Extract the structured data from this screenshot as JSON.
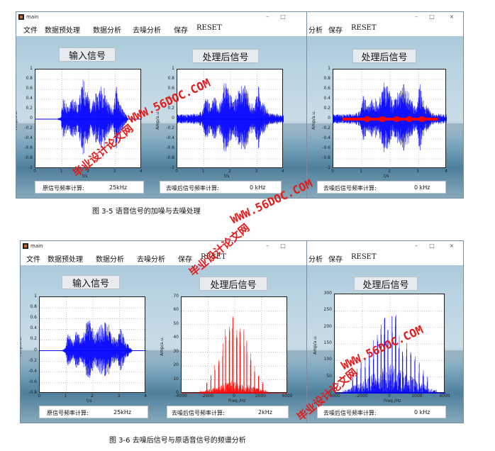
{
  "windows": {
    "title": "main",
    "menu": [
      "文件",
      "数据预处理",
      "数据分析",
      "去噪分析",
      "保存",
      "RESET"
    ],
    "menu_cut": [
      "分析",
      "保存",
      "RESET"
    ],
    "panel_input": "输入信号",
    "panel_processed": "处理后信号",
    "status_orig_label": "原信号频率计算:",
    "status_orig_value": "25kHz",
    "status_denoise_label": "去噪后信号频率计算:"
  },
  "top": {
    "denoise_value_mid": "0 kHz",
    "denoise_value_right": "0 kHz",
    "caption": "图 3-5   语音信号的加噪与去噪处理"
  },
  "bottom": {
    "denoise_value_mid": "2kHz",
    "denoise_value_right": "0 kHz",
    "caption": "图 3-6  去噪后信号与原语音信号的频谱分析"
  },
  "axes_text": {
    "time_xlabel": "t/s",
    "amp_ylabel": "Amp/a.u.",
    "freq_xlabel": "Freq./Hz",
    "amp_ylabel_freq": "Amp/a.u."
  },
  "watermarks": {
    "site_cn": "毕业设计论文网",
    "site_url": "WWW.56DOC.COM"
  },
  "colors": {
    "signal": "#0000ff",
    "spectrum_red": "#ff0000",
    "denoised_red": "#ff0000"
  },
  "chart_data": [
    {
      "type": "line",
      "name_hint": "top-input",
      "x_ticks": [
        "0",
        "1",
        "2",
        "3",
        "4"
      ],
      "y_ticks": [
        "1",
        "0.8",
        "0.6",
        "0.4",
        "0.2",
        "0",
        "-0.2",
        "-0.4",
        "-0.6",
        "-0.8",
        "-1"
      ],
      "xlim": [
        0,
        4
      ],
      "ylim": [
        -1,
        1
      ],
      "envelope_x": [
        0,
        0.4,
        0.8,
        0.95,
        1.05,
        1.25,
        1.4,
        1.6,
        1.8,
        1.95,
        2.1,
        2.3,
        2.55,
        2.7,
        2.9,
        3.05,
        3.2,
        3.5,
        4
      ],
      "envelope_y": [
        0,
        0,
        0,
        0.05,
        0.45,
        0.25,
        0.5,
        0.3,
        0.85,
        0.6,
        0.3,
        0.55,
        0.75,
        0.4,
        0.2,
        0.7,
        0.3,
        0,
        0
      ]
    },
    {
      "type": "line",
      "name_hint": "top-processed",
      "x_ticks": [
        "0",
        "1",
        "2",
        "3",
        "4"
      ],
      "y_ticks": [
        "1",
        "0.8",
        "0.6",
        "0.4",
        "0.2",
        "0",
        "-0.2",
        "-0.4",
        "-0.6",
        "-0.8",
        "-1"
      ],
      "xlim": [
        0,
        4
      ],
      "ylim": [
        -1,
        1
      ],
      "envelope_x": [
        0,
        0.4,
        0.8,
        0.95,
        1.05,
        1.25,
        1.4,
        1.6,
        1.8,
        1.95,
        2.1,
        2.3,
        2.55,
        2.7,
        2.9,
        3.05,
        3.2,
        3.5,
        4
      ],
      "envelope_y": [
        0.1,
        0.1,
        0.12,
        0.18,
        0.5,
        0.3,
        0.55,
        0.35,
        0.85,
        0.65,
        0.35,
        0.6,
        0.78,
        0.45,
        0.25,
        0.72,
        0.35,
        0.12,
        0.1
      ]
    },
    {
      "type": "line",
      "name_hint": "top-denoised",
      "x_ticks": [
        "0",
        "1",
        "2",
        "3",
        "4"
      ],
      "y_ticks": [
        "1",
        "0.8",
        "0.6",
        "0.4",
        "0.2",
        "0",
        "-0.2",
        "-0.4",
        "-0.6",
        "-0.8",
        "-1"
      ],
      "xlim": [
        0,
        4
      ],
      "ylim": [
        -1,
        1
      ],
      "envelope_x": [
        0,
        0.4,
        0.8,
        0.95,
        1.05,
        1.25,
        1.4,
        1.6,
        1.8,
        1.95,
        2.1,
        2.3,
        2.55,
        2.7,
        2.9,
        3.05,
        3.2,
        3.5,
        4
      ],
      "envelope_y": [
        0.1,
        0.1,
        0.12,
        0.18,
        0.5,
        0.3,
        0.55,
        0.35,
        0.85,
        0.65,
        0.35,
        0.6,
        0.78,
        0.45,
        0.25,
        0.72,
        0.35,
        0.12,
        0.1
      ]
    },
    {
      "type": "line",
      "name_hint": "bottom-input",
      "x_ticks": [
        "0",
        "1",
        "2",
        "3",
        "4"
      ],
      "y_ticks": [
        "1",
        "0.8",
        "0.6",
        "0.4",
        "0.2",
        "0",
        "-0.2",
        "-0.4",
        "-0.6",
        "-0.8"
      ],
      "xlim": [
        0,
        4
      ],
      "ylim": [
        -0.8,
        1
      ],
      "envelope_x": [
        0,
        0.4,
        0.8,
        0.95,
        1.05,
        1.25,
        1.4,
        1.6,
        1.8,
        1.95,
        2.1,
        2.3,
        2.55,
        2.7,
        2.9,
        3.05,
        3.2,
        3.5,
        4
      ],
      "envelope_y": [
        0,
        0,
        0,
        0.05,
        0.35,
        0.2,
        0.4,
        0.25,
        0.7,
        0.5,
        0.3,
        0.5,
        0.6,
        0.35,
        0.2,
        0.45,
        0.2,
        0,
        0
      ]
    },
    {
      "type": "bar",
      "name_hint": "bottom-processed-spectrum",
      "x_ticks": [
        "-4000",
        "-2000",
        "0",
        "2000",
        "4000"
      ],
      "y_ticks": [
        "70",
        "60",
        "50",
        "40",
        "30",
        "20",
        "10",
        "0"
      ],
      "xlim": [
        -4000,
        4000
      ],
      "ylim": [
        0,
        70
      ]
    },
    {
      "type": "bar",
      "name_hint": "bottom-denoised-spectrum",
      "x_ticks": [
        "-4000",
        "-2000",
        "0",
        "2000",
        "4000"
      ],
      "y_ticks": [
        "300",
        "250",
        "200",
        "150",
        "100",
        "50",
        "0"
      ],
      "xlim": [
        -4000,
        4000
      ],
      "ylim": [
        0,
        300
      ]
    }
  ]
}
